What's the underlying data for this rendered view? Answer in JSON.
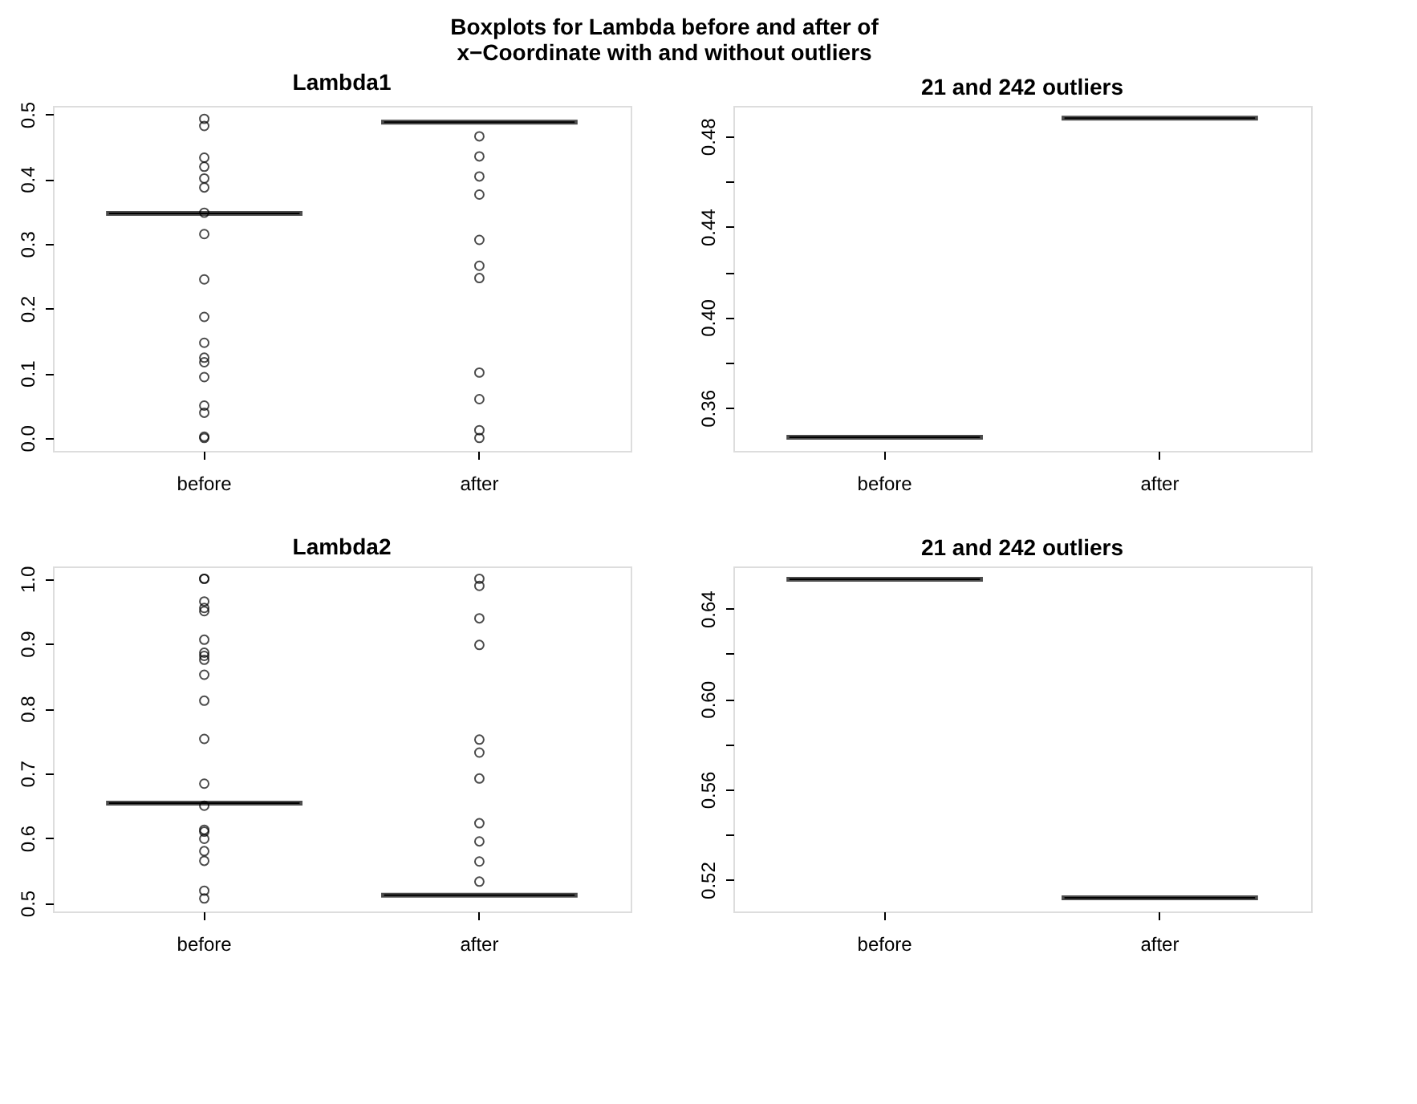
{
  "chart_data": [
    {
      "type": "box",
      "title": "Lambda1",
      "annotations": [
        "Boxplots for Lambda before and after of\nx−Coordinate with and without outliers"
      ],
      "categories": [
        "before",
        "after"
      ],
      "ylim": [
        -0.02,
        0.513
      ],
      "yticks": [
        {
          "value": 0,
          "label": "0.0"
        },
        {
          "value": 0.1,
          "label": "0.1"
        },
        {
          "value": 0.2,
          "label": "0.2"
        },
        {
          "value": 0.3,
          "label": "0.3"
        },
        {
          "value": 0.4,
          "label": "0.4"
        },
        {
          "value": 0.5,
          "label": "0.5"
        }
      ],
      "grid": false,
      "boxes": [
        {
          "low": 0.347,
          "q1": 0.347,
          "median": 0.347,
          "q3": 0.347,
          "high": 0.347,
          "outliers": [
            0.493,
            0.482,
            0.433,
            0.419,
            0.401,
            0.387,
            0.348,
            0.315,
            0.245,
            0.187,
            0.147,
            0.124,
            0.117,
            0.094,
            0.05,
            0.039,
            0.002,
            0.0
          ]
        },
        {
          "low": 0.488,
          "q1": 0.488,
          "median": 0.488,
          "q3": 0.488,
          "high": 0.488,
          "outliers": [
            0.466,
            0.435,
            0.404,
            0.376,
            0.306,
            0.266,
            0.247,
            0.101,
            0.06,
            0.012,
            0.0
          ]
        }
      ]
    },
    {
      "type": "box",
      "title": "21 and 242 outliers",
      "categories": [
        "before",
        "after"
      ],
      "ylim": [
        0.341,
        0.4934
      ],
      "yticks": [
        {
          "value": 0.36,
          "label": "0.36"
        },
        {
          "value": 0.38,
          "label": null
        },
        {
          "value": 0.4,
          "label": "0.40"
        },
        {
          "value": 0.42,
          "label": null
        },
        {
          "value": 0.44,
          "label": "0.44"
        },
        {
          "value": 0.46,
          "label": null
        },
        {
          "value": 0.48,
          "label": "0.48"
        }
      ],
      "grid": false,
      "boxes": [
        {
          "low": 0.347,
          "q1": 0.347,
          "median": 0.347,
          "q3": 0.347,
          "high": 0.347
        },
        {
          "low": 0.488,
          "q1": 0.488,
          "median": 0.488,
          "q3": 0.488,
          "high": 0.488
        }
      ]
    },
    {
      "type": "box",
      "title": "Lambda2",
      "categories": [
        "before",
        "after"
      ],
      "ylim": [
        0.487,
        1.019
      ],
      "yticks": [
        {
          "value": 0.5,
          "label": "0.5"
        },
        {
          "value": 0.6,
          "label": "0.6"
        },
        {
          "value": 0.7,
          "label": "0.7"
        },
        {
          "value": 0.8,
          "label": "0.8"
        },
        {
          "value": 0.9,
          "label": "0.9"
        },
        {
          "value": 1.0,
          "label": "1.0"
        }
      ],
      "grid": false,
      "boxes": [
        {
          "low": 0.654,
          "q1": 0.654,
          "median": 0.654,
          "q3": 0.654,
          "high": 0.654,
          "outliers": [
            1.0,
            1.0,
            0.965,
            0.955,
            0.95,
            0.906,
            0.886,
            0.881,
            0.875,
            0.852,
            0.812,
            0.753,
            0.684,
            0.65,
            0.613,
            0.61,
            0.599,
            0.58,
            0.565,
            0.519,
            0.507
          ]
        },
        {
          "low": 0.512,
          "q1": 0.512,
          "median": 0.512,
          "q3": 0.512,
          "high": 0.512,
          "outliers": [
            1.0,
            0.989,
            0.939,
            0.898,
            0.752,
            0.732,
            0.692,
            0.623,
            0.595,
            0.564,
            0.533
          ]
        }
      ]
    },
    {
      "type": "box",
      "title": "21 and 242 outliers",
      "categories": [
        "before",
        "after"
      ],
      "ylim": [
        0.506,
        0.6587
      ],
      "yticks": [
        {
          "value": 0.52,
          "label": "0.52"
        },
        {
          "value": 0.54,
          "label": null
        },
        {
          "value": 0.56,
          "label": "0.56"
        },
        {
          "value": 0.58,
          "label": null
        },
        {
          "value": 0.6,
          "label": "0.60"
        },
        {
          "value": 0.62,
          "label": null
        },
        {
          "value": 0.64,
          "label": "0.64"
        }
      ],
      "grid": false,
      "boxes": [
        {
          "low": 0.653,
          "q1": 0.653,
          "median": 0.653,
          "q3": 0.653,
          "high": 0.653
        },
        {
          "low": 0.512,
          "q1": 0.512,
          "median": 0.512,
          "q3": 0.512,
          "high": 0.512
        }
      ]
    }
  ]
}
